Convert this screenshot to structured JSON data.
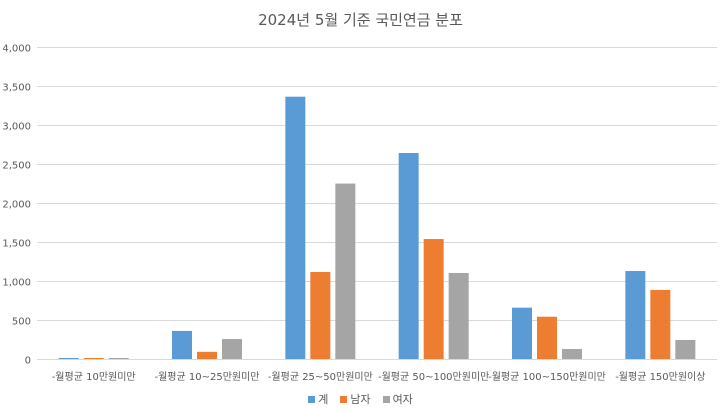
{
  "chart_data": {
    "type": "bar",
    "title": "2024년 5월 기준 국민연금 분포",
    "xlabel": "",
    "ylabel": "",
    "ylim": [
      0,
      4000
    ],
    "yticks": [
      0,
      500,
      1000,
      1500,
      2000,
      2500,
      3000,
      3500,
      4000
    ],
    "ytick_labels": [
      "0",
      "500",
      "1,000",
      "1,500",
      "2,000",
      "2,500",
      "3,000",
      "3,500",
      "4,000"
    ],
    "grid": true,
    "legend_position": "bottom",
    "categories": [
      "-월평균 10만원미만",
      "-월평균 10~25만원미만",
      "-월평균 25~50만원미만",
      "-월평균 50~100만원미만",
      "-월평균 100~150만원미만",
      "-월평균 150만원이상"
    ],
    "series": [
      {
        "name": "계",
        "color": "#5B9BD5",
        "values": [
          12,
          360,
          3363,
          2641,
          658,
          1128
        ]
      },
      {
        "name": "남자",
        "color": "#ED7D31",
        "values": [
          8,
          92,
          1115,
          1538,
          542,
          885
        ]
      },
      {
        "name": "여자",
        "color": "#A5A5A5",
        "values": [
          5,
          256,
          2249,
          1103,
          128,
          244
        ]
      }
    ]
  },
  "colors": {
    "gridline": "#D9D9D9",
    "axis_text": "#595959"
  }
}
